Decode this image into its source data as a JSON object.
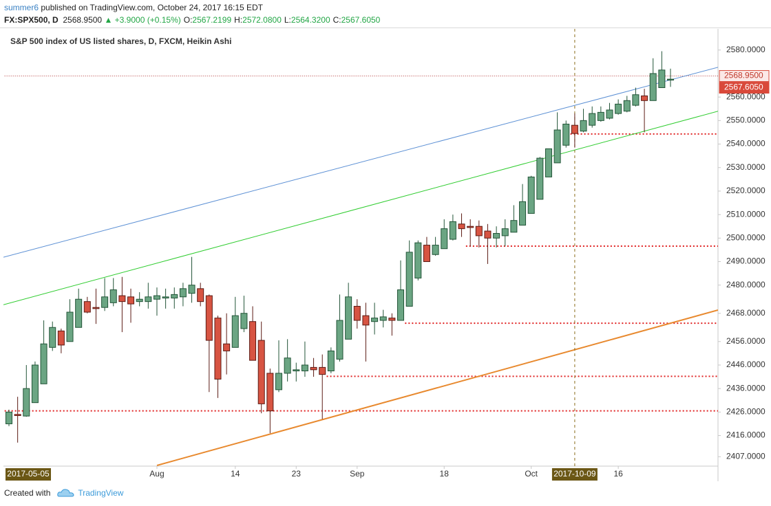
{
  "header": {
    "author": "summer6",
    "published": "published on TradingView.com, October 24, 2017 16:15 EDT",
    "symbol": "FX:SPX500, D",
    "price": "2568.9500",
    "change": "▲ +3.9000 (+0.15%)",
    "ohlc": [
      {
        "label": "O:",
        "value": "2567.2199"
      },
      {
        "label": "H:",
        "value": "2572.0800"
      },
      {
        "label": "L:",
        "value": "2564.3200"
      },
      {
        "label": "C:",
        "value": "2567.6050"
      }
    ]
  },
  "chart_data": {
    "type": "candlestick",
    "title": "S&P 500 index of US listed shares, D, FXCM, Heikin Ashi",
    "x": [
      "2017-07-07",
      "2017-07-10",
      "2017-07-11",
      "2017-07-12",
      "2017-07-13",
      "2017-07-14",
      "2017-07-17",
      "2017-07-18",
      "2017-07-19",
      "2017-07-20",
      "2017-07-21",
      "2017-07-24",
      "2017-07-25",
      "2017-07-26",
      "2017-07-27",
      "2017-07-28",
      "2017-07-31",
      "2017-08-01",
      "2017-08-02",
      "2017-08-03",
      "2017-08-04",
      "2017-08-07",
      "2017-08-08",
      "2017-08-09",
      "2017-08-10",
      "2017-08-11",
      "2017-08-14",
      "2017-08-15",
      "2017-08-16",
      "2017-08-17",
      "2017-08-18",
      "2017-08-21",
      "2017-08-22",
      "2017-08-23",
      "2017-08-24",
      "2017-08-25",
      "2017-08-28",
      "2017-08-29",
      "2017-08-30",
      "2017-08-31",
      "2017-09-01",
      "2017-09-05",
      "2017-09-06",
      "2017-09-07",
      "2017-09-08",
      "2017-09-11",
      "2017-09-12",
      "2017-09-13",
      "2017-09-14",
      "2017-09-15",
      "2017-09-18",
      "2017-09-19",
      "2017-09-20",
      "2017-09-21",
      "2017-09-22",
      "2017-09-25",
      "2017-09-26",
      "2017-09-27",
      "2017-09-28",
      "2017-09-29",
      "2017-10-02",
      "2017-10-03",
      "2017-10-04",
      "2017-10-05",
      "2017-10-06",
      "2017-10-09",
      "2017-10-10",
      "2017-10-11",
      "2017-10-12",
      "2017-10-13",
      "2017-10-16",
      "2017-10-17",
      "2017-10-18",
      "2017-10-19",
      "2017-10-20",
      "2017-10-23",
      "2017-10-24"
    ],
    "open": [
      2421,
      2425,
      2424.3,
      2430,
      2438,
      2453.5,
      2460.5,
      2456,
      2462,
      2473,
      2470.5,
      2470.5,
      2472.5,
      2475.5,
      2475,
      2473,
      2473,
      2474,
      2474.5,
      2474.5,
      2475,
      2476.5,
      2478.5,
      2475.5,
      2466,
      2455,
      2453.5,
      2461.5,
      2464.5,
      2456.5,
      2442.5,
      2435.5,
      2442.5,
      2443.5,
      2443.5,
      2445,
      2445,
      2443.5,
      2448.5,
      2457,
      2471,
      2467,
      2464.5,
      2465,
      2466,
      2465,
      2471,
      2483,
      2497,
      2493,
      2495.5,
      2499.5,
      2506,
      2505,
      2505,
      2503,
      2500,
      2501,
      2502.5,
      2505.5,
      2510.5,
      2516.5,
      2526,
      2532,
      2539.5,
      2548,
      2545.5,
      2548,
      2550,
      2551,
      2553,
      2554,
      2556.5,
      2560.5,
      2558.5,
      2564,
      2567.2199
    ],
    "high": [
      2427,
      2432.5,
      2446,
      2447.5,
      2465,
      2464.5,
      2461.5,
      2474,
      2478.5,
      2475,
      2478.5,
      2483,
      2483,
      2483.5,
      2478.5,
      2477,
      2481,
      2479,
      2478.5,
      2479,
      2481,
      2492,
      2481,
      2476,
      2467,
      2468,
      2475,
      2475.5,
      2471,
      2464.5,
      2444.5,
      2456.5,
      2457,
      2447,
      2456,
      2449,
      2450.5,
      2453.5,
      2476,
      2481,
      2474,
      2472.5,
      2472.5,
      2469.5,
      2468,
      2490.5,
      2499,
      2499,
      2500.5,
      2500.5,
      2508,
      2510,
      2510.5,
      2508,
      2507.5,
      2506,
      2505,
      2508,
      2514,
      2523,
      2526.5,
      2534.5,
      2538,
      2553.5,
      2550,
      2553,
      2555,
      2556,
      2556,
      2557.5,
      2559,
      2560.5,
      2564,
      2563.5,
      2576.5,
      2579.5,
      2572.08
    ],
    "low": [
      2420,
      2413,
      2424,
      2430,
      2438,
      2452,
      2451,
      2456,
      2462,
      2468,
      2463.5,
      2469,
      2471,
      2460,
      2464,
      2471,
      2470,
      2467,
      2470,
      2470,
      2471,
      2472.5,
      2471,
      2434.5,
      2432,
      2442,
      2453.5,
      2460,
      2448,
      2425.5,
      2417,
      2434.5,
      2439,
      2439,
      2441,
      2441,
      2423,
      2442.5,
      2447.5,
      2457,
      2461.5,
      2447.5,
      2459,
      2462,
      2458.5,
      2465,
      2471,
      2482,
      2490,
      2492.5,
      2495.5,
      2499,
      2500.5,
      2496.5,
      2496,
      2489,
      2496,
      2496.5,
      2502.5,
      2505.5,
      2510.5,
      2516.5,
      2526,
      2532,
      2538.5,
      2538.5,
      2545,
      2547,
      2549.5,
      2550.5,
      2552.5,
      2553.5,
      2556,
      2545,
      2558.5,
      2564,
      2564.32
    ],
    "close": [
      2426,
      2424.5,
      2436,
      2446,
      2455,
      2462,
      2454.5,
      2468.5,
      2474,
      2468.5,
      2470,
      2475,
      2478,
      2473,
      2472,
      2474,
      2475,
      2475.5,
      2475,
      2476,
      2478.5,
      2480,
      2473,
      2456.5,
      2440,
      2452,
      2467,
      2468,
      2448,
      2429.5,
      2426.5,
      2442.5,
      2449,
      2444,
      2446,
      2444,
      2442,
      2452,
      2465,
      2475,
      2465,
      2463,
      2466,
      2466.5,
      2465,
      2478,
      2494,
      2498,
      2490,
      2497,
      2504,
      2507,
      2504,
      2504.5,
      2501,
      2500,
      2502,
      2504,
      2507.5,
      2515.5,
      2526,
      2534,
      2538,
      2546,
      2548.5,
      2544.5,
      2550,
      2553,
      2553.5,
      2554.5,
      2557,
      2558.5,
      2561,
      2558.5,
      2570,
      2571.5,
      2567.605
    ],
    "up_color": "#6ba583",
    "down_color": "#d75442",
    "ylim": [
      2403,
      2589
    ],
    "yticks": [
      {
        "value": 2407,
        "label": "2407.0000"
      },
      {
        "value": 2416,
        "label": "2416.0000"
      },
      {
        "value": 2426,
        "label": "2426.0000"
      },
      {
        "value": 2436,
        "label": "2436.0000"
      },
      {
        "value": 2446,
        "label": "2446.0000"
      },
      {
        "value": 2456,
        "label": "2456.0000"
      },
      {
        "value": 2468,
        "label": "2468.0000"
      },
      {
        "value": 2480,
        "label": "2480.0000"
      },
      {
        "value": 2490,
        "label": "2490.0000"
      },
      {
        "value": 2500,
        "label": "2500.0000"
      },
      {
        "value": 2510,
        "label": "2510.0000"
      },
      {
        "value": 2520,
        "label": "2520.0000"
      },
      {
        "value": 2530,
        "label": "2530.0000"
      },
      {
        "value": 2540,
        "label": "2540.0000"
      },
      {
        "value": 2550,
        "label": "2550.0000"
      },
      {
        "value": 2560,
        "label": "2560.0000"
      },
      {
        "value": 2580,
        "label": "2580.0000"
      }
    ],
    "xticks": [
      {
        "value": "2017-08-01",
        "label": "Aug"
      },
      {
        "value": "2017-08-14",
        "label": "14"
      },
      {
        "value": "2017-08-23",
        "label": "23"
      },
      {
        "value": "2017-09-01",
        "label": "Sep"
      },
      {
        "value": "2017-09-18",
        "label": "18"
      },
      {
        "value": "2017-10-02",
        "label": "Oct"
      },
      {
        "value": "2017-10-16",
        "label": "16"
      }
    ],
    "price_tags": [
      {
        "value": 2568.95,
        "label": "2568.9500",
        "filled": false
      },
      {
        "value": 2567.605,
        "label": "2567.6050",
        "filled": true
      }
    ],
    "date_labels": [
      {
        "x": "2017-07-07",
        "label": "2017-05-05",
        "line": false
      },
      {
        "x": "2017-10-09",
        "label": "2017-10-09",
        "line": true
      }
    ],
    "levels": [
      {
        "from": "2017-07-07",
        "value": 2568.95,
        "color": "#b03030"
      },
      {
        "from": "2017-07-07",
        "value": 2426.5,
        "color": "#e02020"
      },
      {
        "from": "2017-08-29",
        "value": 2441.2,
        "color": "#e02020"
      },
      {
        "from": "2017-09-12",
        "value": 2463.8,
        "color": "#e02020"
      },
      {
        "from": "2017-09-21",
        "value": 2496.6,
        "color": "#e02020"
      },
      {
        "from": "2017-10-09",
        "value": 2544.3,
        "color": "#e02020"
      }
    ],
    "trend_lines": [
      {
        "x": [
          "2017-07-07",
          "2017-10-24"
        ],
        "values": [
          2492.5,
          2567.3
        ],
        "color": "#5b8fd4",
        "extend": "both"
      },
      {
        "x": [
          "2017-07-07",
          "2017-10-24"
        ],
        "values": [
          2472.3,
          2548.5
        ],
        "color": "#2ecc2e",
        "extend": "both"
      },
      {
        "x": [
          "2017-08-01",
          "2017-10-24"
        ],
        "values": [
          2403.3,
          2463.8
        ],
        "color": "#e8892e",
        "extend": "right"
      }
    ]
  },
  "footer": {
    "created": "Created with",
    "brand": "TradingView"
  }
}
